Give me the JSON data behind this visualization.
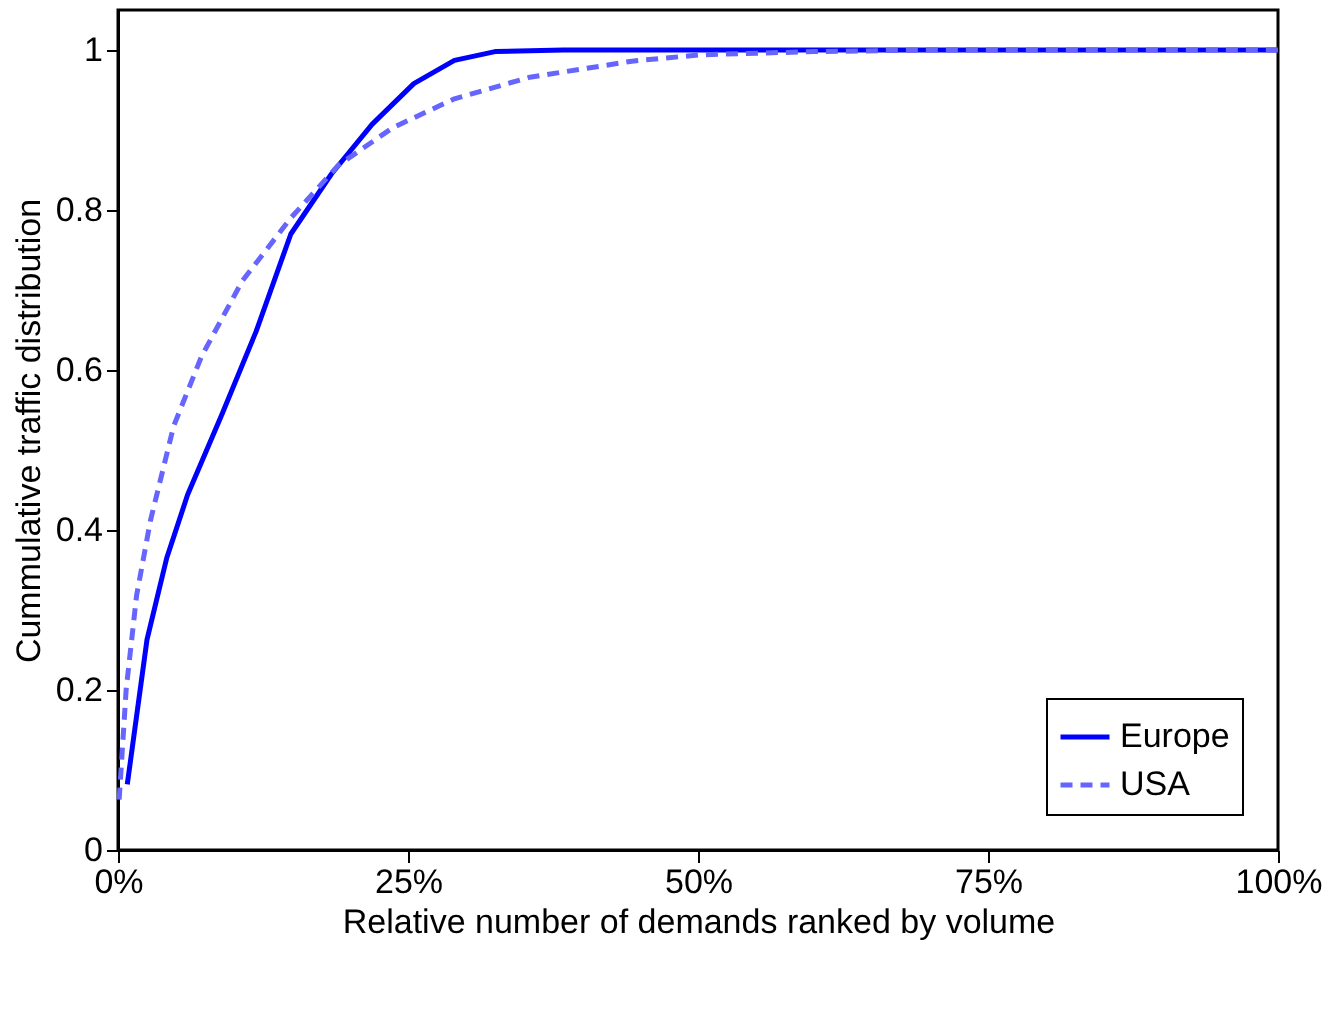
{
  "chart_data": {
    "type": "line",
    "xlabel": "Relative number of demands ranked by volume",
    "ylabel": "Cummulative traffic distribution",
    "xlim": [
      0,
      100
    ],
    "xticks": [
      {
        "value": 0,
        "label": "0%"
      },
      {
        "value": 25,
        "label": "25%"
      },
      {
        "value": 50,
        "label": "50%"
      },
      {
        "value": 75,
        "label": "75%"
      },
      {
        "value": 100,
        "label": "100%"
      }
    ],
    "ylim": [
      0,
      1.05
    ],
    "yticks": [
      0,
      0.2,
      0.4,
      0.6,
      0.8,
      1
    ],
    "grid": false,
    "legend": "bottom right",
    "marker": "none",
    "series": [
      {
        "name": "Europe",
        "color": "#0000ff",
        "line_style": "solid",
        "x": [
          0.8,
          2.5,
          4.2,
          6.0,
          9.0,
          11.9,
          14.9,
          18.4,
          21.9,
          25.5,
          29,
          32.5,
          38.4,
          100
        ],
        "values": [
          0.082,
          0.263,
          0.365,
          0.444,
          0.546,
          0.648,
          0.77,
          0.845,
          0.907,
          0.958,
          0.987,
          0.998,
          1.0,
          1.0
        ]
      },
      {
        "name": "USA",
        "color": "#6666ff",
        "line_style": "dashed",
        "x": [
          0.1,
          0.7,
          1.6,
          2.8,
          4.8,
          7.2,
          10.7,
          14.9,
          19,
          23.7,
          29,
          35.5,
          44.3,
          50.2,
          60,
          70,
          100
        ],
        "values": [
          0.063,
          0.2,
          0.318,
          0.412,
          0.53,
          0.617,
          0.711,
          0.79,
          0.856,
          0.903,
          0.939,
          0.966,
          0.986,
          0.994,
          0.998,
          1.0,
          1.0
        ]
      }
    ]
  }
}
